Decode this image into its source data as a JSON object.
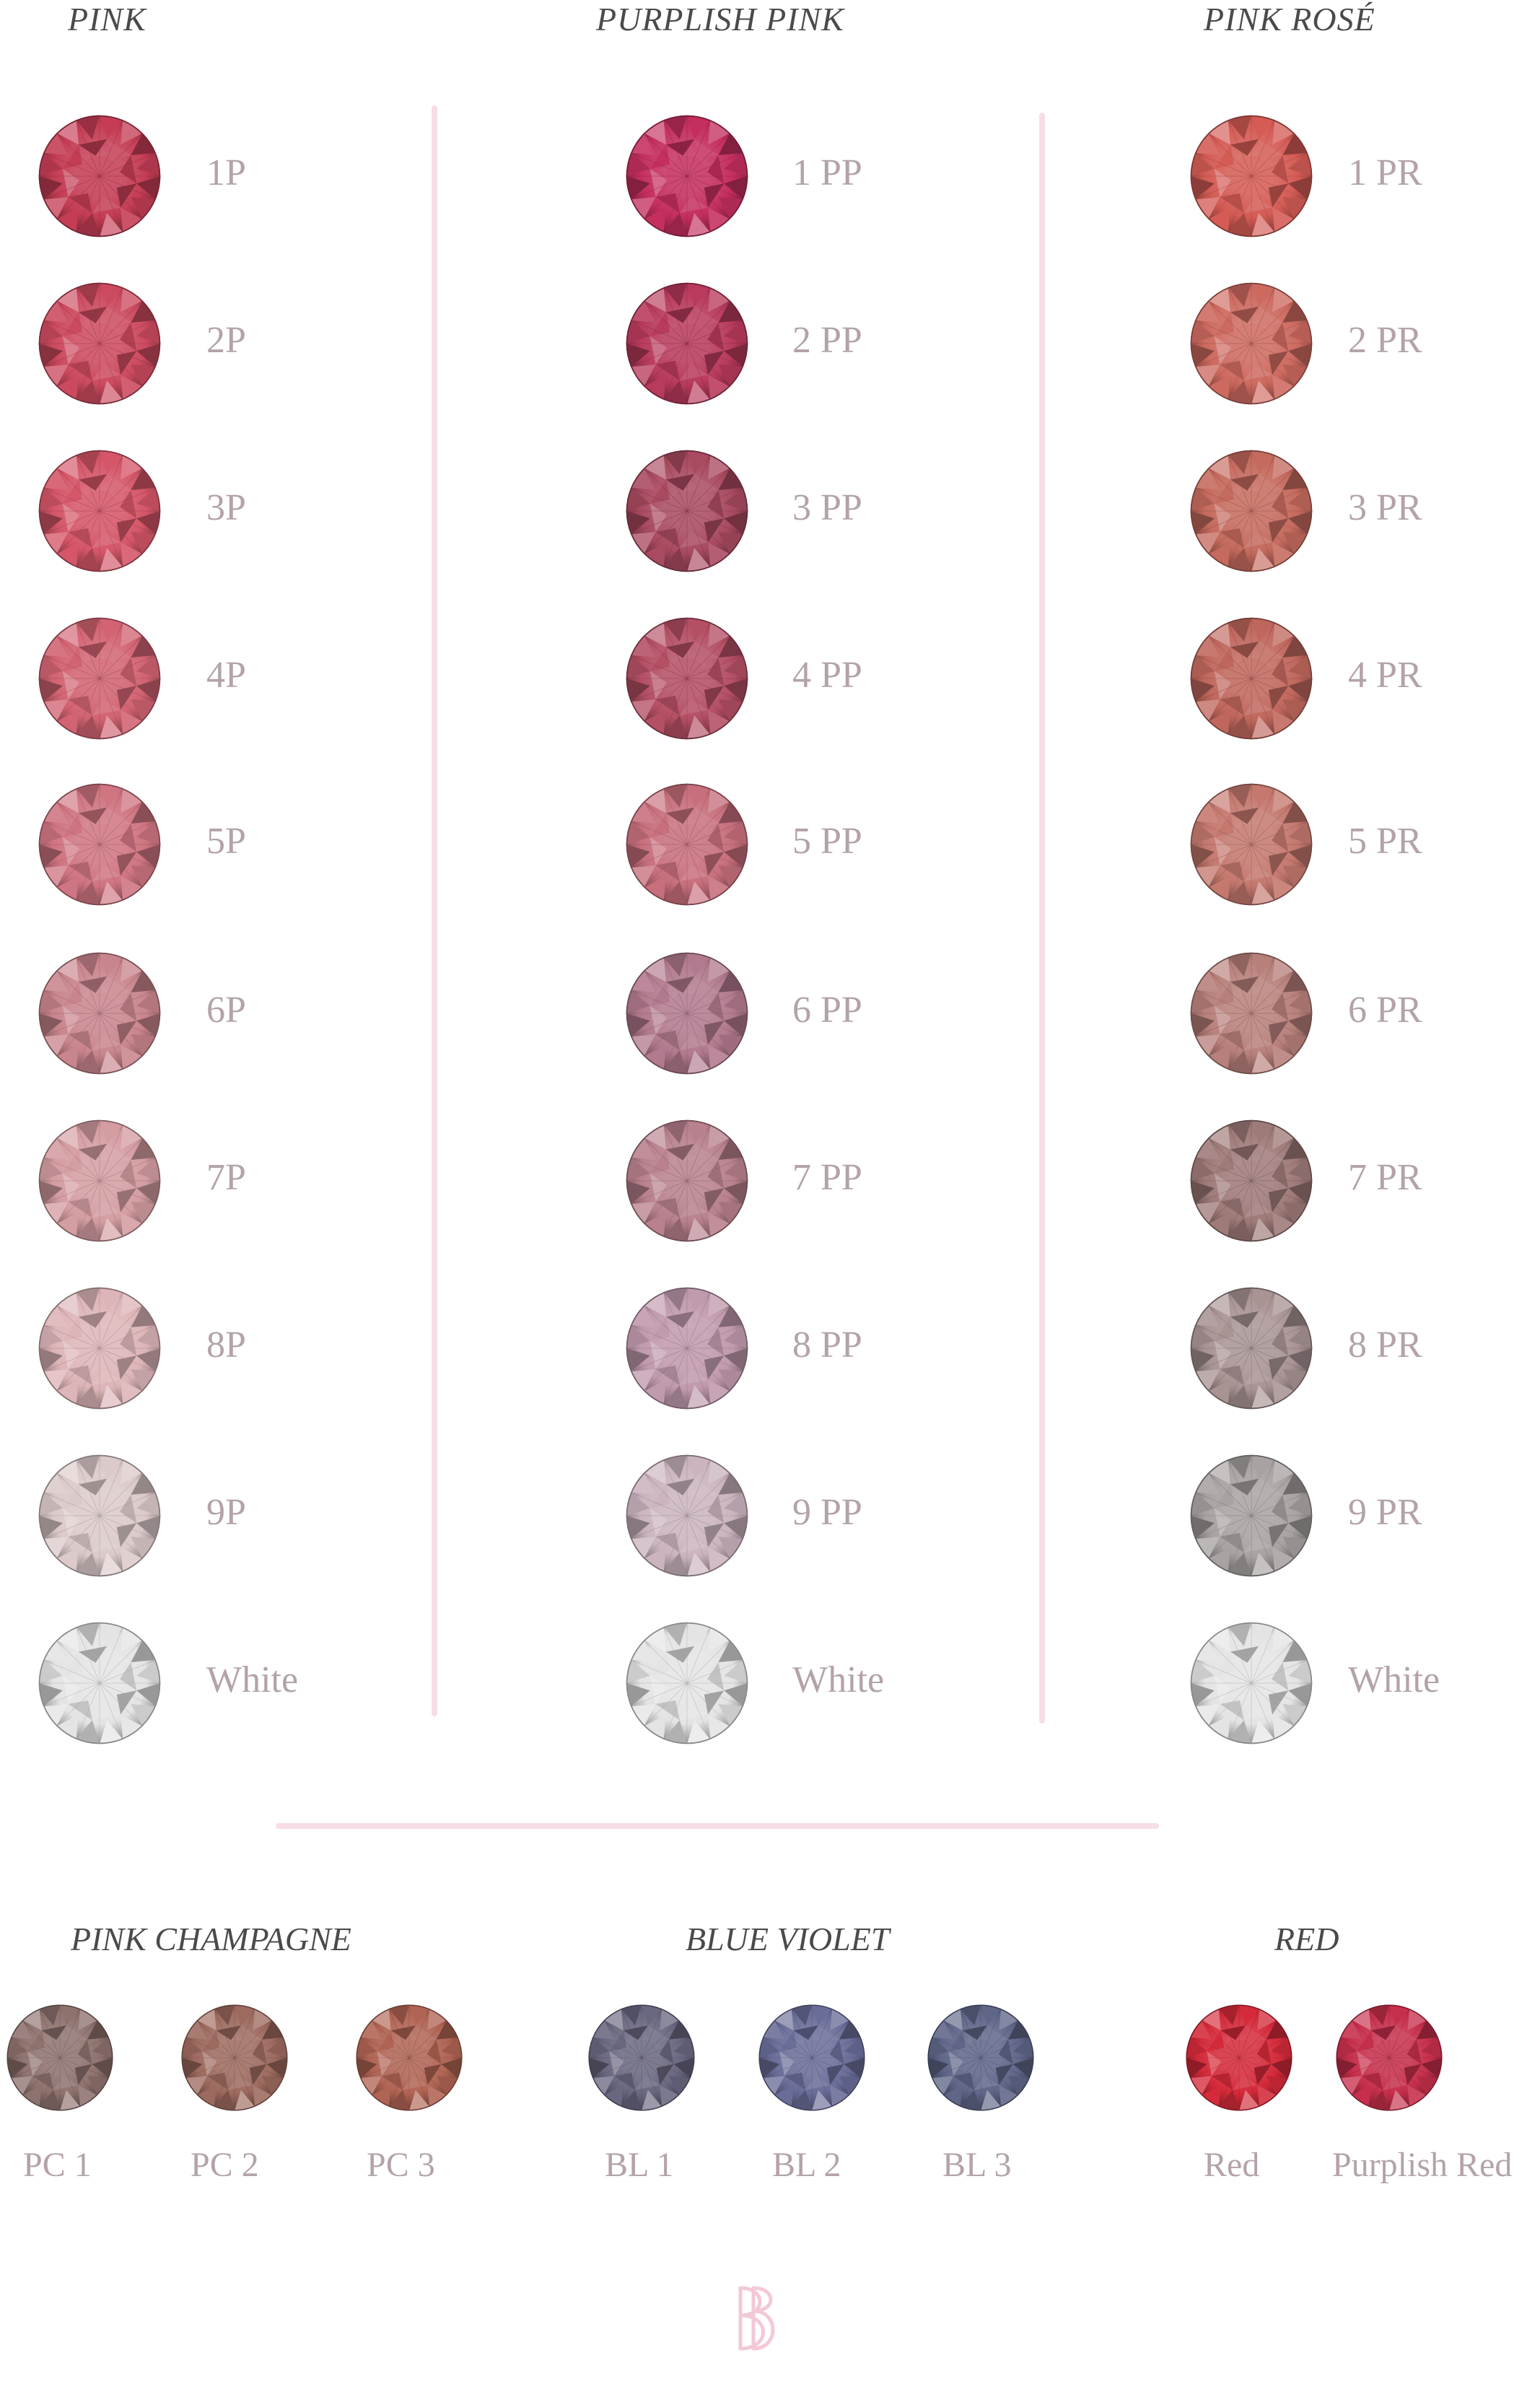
{
  "columns": [
    {
      "title": "PINK",
      "items": [
        {
          "label": "1P",
          "color": "#c43d55"
        },
        {
          "label": "2P",
          "color": "#cc4a5f"
        },
        {
          "label": "3P",
          "color": "#d45668"
        },
        {
          "label": "4P",
          "color": "#d26372"
        },
        {
          "label": "5P",
          "color": "#cf7581"
        },
        {
          "label": "6P",
          "color": "#c9858d"
        },
        {
          "label": "7P",
          "color": "#d49da2"
        },
        {
          "label": "8P",
          "color": "#ddb5b8"
        },
        {
          "label": "9P",
          "color": "#dccaca"
        },
        {
          "label": "White",
          "color": "#e4e4e4"
        }
      ]
    },
    {
      "title": "PURPLISH PINK",
      "items": [
        {
          "label": "1 PP",
          "color": "#c42f5e"
        },
        {
          "label": "2 PP",
          "color": "#b83a5c"
        },
        {
          "label": "3 PP",
          "color": "#a94a60"
        },
        {
          "label": "4 PP",
          "color": "#b44f64"
        },
        {
          "label": "5 PP",
          "color": "#c76f7c"
        },
        {
          "label": "6 PP",
          "color": "#b27a8e"
        },
        {
          "label": "7 PP",
          "color": "#b8818d"
        },
        {
          "label": "8 PP",
          "color": "#c09aad"
        },
        {
          "label": "9 PP",
          "color": "#cbb4c0"
        },
        {
          "label": "White",
          "color": "#e4e4e4"
        }
      ]
    },
    {
      "title": "PINK ROSÉ",
      "items": [
        {
          "label": "1 PR",
          "color": "#d45c55"
        },
        {
          "label": "2 PR",
          "color": "#cd6a60"
        },
        {
          "label": "3 PR",
          "color": "#c56a5e"
        },
        {
          "label": "4 PR",
          "color": "#c0675d"
        },
        {
          "label": "5 PR",
          "color": "#c4786e"
        },
        {
          "label": "6 PR",
          "color": "#b8807b"
        },
        {
          "label": "7 PR",
          "color": "#9e7a78"
        },
        {
          "label": "8 PR",
          "color": "#a99494"
        },
        {
          "label": "9 PR",
          "color": "#a9a2a2"
        },
        {
          "label": "White",
          "color": "#e4e4e4"
        }
      ]
    }
  ],
  "sections": [
    {
      "title": "PINK CHAMPAGNE",
      "items": [
        {
          "label": "PC 1",
          "color": "#8e726e"
        },
        {
          "label": "PC 2",
          "color": "#9d6a5f"
        },
        {
          "label": "PC 3",
          "color": "#b06454"
        }
      ]
    },
    {
      "title": "BLUE VIOLET",
      "items": [
        {
          "label": "BL 1",
          "color": "#6a6880"
        },
        {
          "label": "BL 2",
          "color": "#6a6d98"
        },
        {
          "label": "BL 3",
          "color": "#5f6688"
        }
      ]
    },
    {
      "title": "RED",
      "items": [
        {
          "label": "Red",
          "color": "#d42a3a"
        },
        {
          "label": "Purplish Red",
          "color": "#c62f4c"
        }
      ]
    }
  ],
  "accent_color": "#f7dde5"
}
